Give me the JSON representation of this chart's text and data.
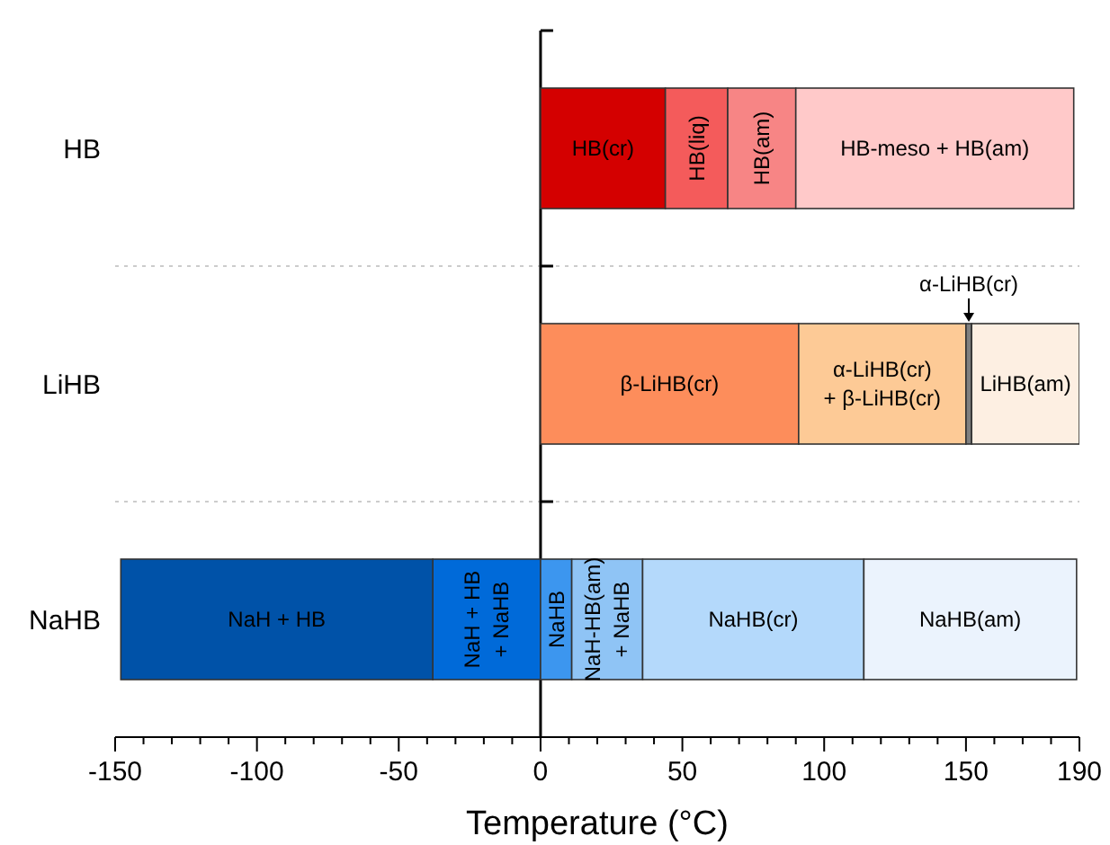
{
  "chart_data": {
    "type": "bar",
    "orientation": "horizontal",
    "stacked": true,
    "xlabel": "Temperature (°C)",
    "categories": [
      "HB",
      "LiHB",
      "NaHB"
    ],
    "xlim": [
      -150,
      190
    ],
    "xticks": [
      -150,
      {
        "value": -140,
        "label": null
      },
      {
        "value": -130,
        "label": null
      },
      {
        "value": -120,
        "label": null
      },
      {
        "value": -110,
        "label": null
      },
      -100,
      {
        "value": -90,
        "label": null
      },
      {
        "value": -80,
        "label": null
      },
      {
        "value": -70,
        "label": null
      },
      {
        "value": -60,
        "label": null
      },
      -50,
      {
        "value": -40,
        "label": null
      },
      {
        "value": -30,
        "label": null
      },
      {
        "value": -20,
        "label": null
      },
      {
        "value": -10,
        "label": null
      },
      0,
      {
        "value": 10,
        "label": null
      },
      {
        "value": 20,
        "label": null
      },
      {
        "value": 30,
        "label": null
      },
      {
        "value": 40,
        "label": null
      },
      50,
      {
        "value": 60,
        "label": null
      },
      {
        "value": 70,
        "label": null
      },
      {
        "value": 80,
        "label": null
      },
      {
        "value": 90,
        "label": null
      },
      100,
      {
        "value": 110,
        "label": null
      },
      {
        "value": 120,
        "label": null
      },
      {
        "value": 130,
        "label": null
      },
      {
        "value": 140,
        "label": null
      },
      150,
      {
        "value": 160,
        "label": null
      },
      {
        "value": 170,
        "label": null
      },
      {
        "value": 180,
        "label": null
      },
      190
    ],
    "grid": "y",
    "legend": false,
    "series": [
      {
        "name": "HB(cr)",
        "color": "#d40000",
        "values": [
          44,
          null,
          null
        ]
      },
      {
        "name": "HB(liq)",
        "color": "#f45b5b",
        "values": [
          22,
          null,
          null
        ]
      },
      {
        "name": "HB(am)",
        "color": "#f78585",
        "values": [
          24,
          null,
          null
        ]
      },
      {
        "name": "HB-meso + HB(am)",
        "color": "#ffc9c9",
        "values": [
          98,
          null,
          null
        ]
      },
      {
        "name": "β-LiHB(cr)",
        "color": "#fd8d5b",
        "values": [
          null,
          91,
          null
        ]
      },
      {
        "name": "α-LiHB(cr) + β-LiHB(cr)",
        "color": "#fdca96",
        "values": [
          null,
          59,
          null
        ]
      },
      {
        "name": "α-LiHB(cr)",
        "color": "#7f7f7f",
        "values": [
          null,
          2,
          null
        ]
      },
      {
        "name": "LiHB(am)",
        "color": "#fdefe2",
        "values": [
          null,
          38,
          null
        ]
      },
      {
        "name": "NaH + HB + NaHB",
        "color": "#006ad9",
        "values": [
          null,
          null,
          -38
        ]
      },
      {
        "name": "NaH + HB",
        "color": "#0052a8",
        "values": [
          null,
          null,
          -110
        ]
      },
      {
        "name": "NaHB",
        "color": "#3c96ef",
        "values": [
          null,
          null,
          11
        ]
      },
      {
        "name": "NaH-HB(am) + NaHB",
        "color": "#8fc4f5",
        "values": [
          null,
          null,
          25
        ]
      },
      {
        "name": "NaHB(cr)",
        "color": "#b4d9fb",
        "values": [
          null,
          null,
          78
        ]
      },
      {
        "name": "NaHB(am)",
        "color": "#ebf3fd",
        "values": [
          null,
          null,
          75
        ]
      }
    ]
  }
}
